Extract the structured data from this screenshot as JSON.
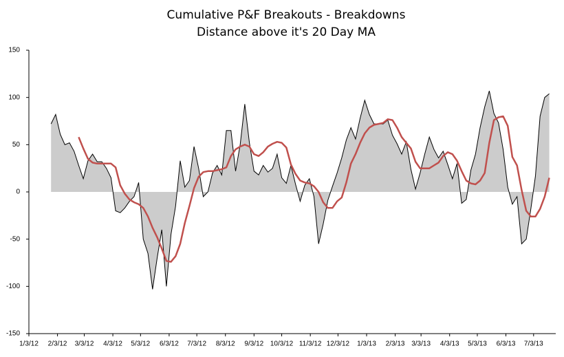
{
  "chart_data": {
    "type": "area",
    "title": [
      "Cumulative P&F Breakouts - Breakdowns",
      "Distance above it's 20 Day MA"
    ],
    "x": [
      "1/27/12",
      "2/1/12",
      "2/6/12",
      "2/11/12",
      "2/16/12",
      "2/21/12",
      "2/26/12",
      "3/2/12",
      "3/7/12",
      "3/12/12",
      "3/17/12",
      "3/22/12",
      "3/27/12",
      "4/1/12",
      "4/6/12",
      "4/11/12",
      "4/16/12",
      "4/21/12",
      "4/26/12",
      "5/1/12",
      "5/6/12",
      "5/11/12",
      "5/16/12",
      "5/21/12",
      "5/26/12",
      "5/31/12",
      "6/5/12",
      "6/10/12",
      "6/15/12",
      "6/20/12",
      "6/25/12",
      "6/30/12",
      "7/5/12",
      "7/10/12",
      "7/15/12",
      "7/20/12",
      "7/25/12",
      "7/30/12",
      "8/4/12",
      "8/9/12",
      "8/14/12",
      "8/19/12",
      "8/24/12",
      "8/29/12",
      "9/3/12",
      "9/8/12",
      "9/13/12",
      "9/18/12",
      "9/23/12",
      "9/28/12",
      "10/3/12",
      "10/8/12",
      "10/13/12",
      "10/18/12",
      "10/23/12",
      "10/28/12",
      "11/2/12",
      "11/7/12",
      "11/12/12",
      "11/17/12",
      "11/22/12",
      "11/27/12",
      "12/2/12",
      "12/7/12",
      "12/12/12",
      "12/17/12",
      "12/22/12",
      "12/27/12",
      "1/1/13",
      "1/6/13",
      "1/11/13",
      "1/16/13",
      "1/21/13",
      "1/26/13",
      "1/31/13",
      "2/5/13",
      "2/10/13",
      "2/15/13",
      "2/20/13",
      "2/25/13",
      "3/2/13",
      "3/7/13",
      "3/12/13",
      "3/17/13",
      "3/22/13",
      "3/27/13",
      "4/1/13",
      "4/6/13",
      "4/11/13",
      "4/16/13",
      "4/21/13",
      "4/26/13",
      "5/1/13",
      "5/6/13",
      "5/11/13",
      "5/16/13",
      "5/21/13",
      "5/26/13",
      "5/31/13",
      "6/5/13",
      "6/10/13",
      "6/15/13",
      "6/20/13",
      "6/25/13",
      "6/30/13",
      "7/5/13",
      "7/10/13",
      "7/15/13",
      "7/20/13"
    ],
    "series": [
      {
        "color": "#000000",
        "fill": "#cccccc",
        "values": [
          72,
          82,
          61,
          50,
          52,
          43,
          28,
          14,
          33,
          40,
          32,
          32,
          25,
          15,
          -20,
          -22,
          -17,
          -10,
          -5,
          10,
          -50,
          -65,
          -103,
          -70,
          -40,
          -100,
          -45,
          -15,
          33,
          5,
          12,
          48,
          25,
          -5,
          0,
          20,
          28,
          18,
          65,
          65,
          22,
          50,
          93,
          52,
          22,
          18,
          28,
          21,
          25,
          40,
          15,
          9,
          28,
          8,
          -10,
          7,
          14,
          -5,
          -55,
          -34,
          -9,
          6,
          20,
          36,
          55,
          68,
          56,
          78,
          97,
          82,
          72,
          72,
          72,
          76,
          60,
          51,
          40,
          53,
          24,
          3,
          20,
          40,
          58,
          45,
          36,
          43,
          29,
          14,
          30,
          -12,
          -8,
          23,
          40,
          68,
          90,
          107,
          83,
          73,
          45,
          5,
          -13,
          -5,
          -55,
          -50,
          -18,
          17,
          80,
          100,
          104
        ]
      },
      {
        "type": "line",
        "color": "#c0504d",
        "values": [
          null,
          null,
          null,
          null,
          null,
          null,
          58,
          46,
          35,
          31,
          30,
          30,
          30,
          30,
          26,
          7,
          -2,
          -8,
          -11,
          -13,
          -17,
          -26,
          -38,
          -48,
          -60,
          -73,
          -74,
          -68,
          -55,
          -33,
          -15,
          4,
          16,
          21,
          22,
          22,
          23,
          24,
          26,
          38,
          45,
          48,
          50,
          48,
          40,
          38,
          42,
          48,
          51,
          53,
          52,
          47,
          29,
          19,
          12,
          10,
          9,
          6,
          0,
          -11,
          -17,
          -17,
          -10,
          -6,
          10,
          30,
          40,
          52,
          62,
          68,
          71,
          72,
          73,
          77,
          76,
          68,
          58,
          52,
          46,
          32,
          25,
          25,
          25,
          28,
          31,
          38,
          42,
          40,
          33,
          22,
          12,
          9,
          8,
          12,
          20,
          52,
          76,
          79,
          80,
          70,
          37,
          28,
          2,
          -20,
          -26,
          -26,
          -18,
          -5,
          15
        ]
      }
    ],
    "xlim": [
      "1/3/12",
      "7/27/13"
    ],
    "xticks": [
      "1/3/12",
      "2/3/12",
      "3/3/12",
      "4/3/12",
      "5/3/12",
      "6/3/12",
      "7/3/12",
      "8/3/12",
      "9/3/12",
      "10/3/12",
      "11/3/12",
      "12/3/12",
      "1/3/13",
      "2/3/13",
      "3/3/13",
      "4/3/13",
      "5/3/13",
      "6/3/13",
      "7/3/13"
    ],
    "ylim": [
      -150,
      150
    ],
    "yticks": [
      -150,
      -100,
      -50,
      0,
      50,
      100,
      150
    ],
    "grid": false
  }
}
